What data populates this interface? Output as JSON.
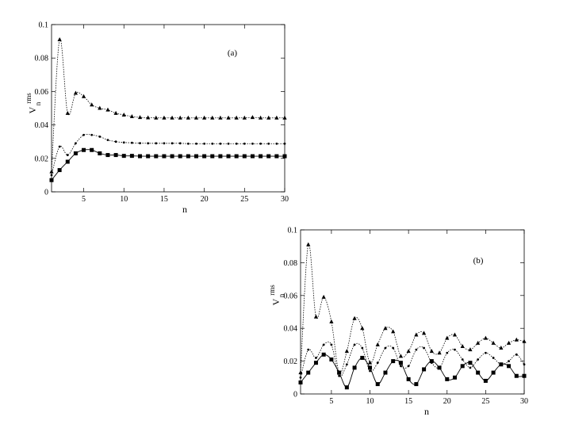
{
  "chart_data": [
    {
      "type": "line",
      "panel_label": "(a)",
      "xlabel": "n",
      "ylabel": "V",
      "ylabel_sub": "n",
      "ylabel_sup": "rms",
      "xlim": [
        1,
        30
      ],
      "ylim": [
        0,
        0.1
      ],
      "xticks": [
        5,
        10,
        15,
        20,
        25,
        30
      ],
      "yticks": [
        0,
        0.02,
        0.04,
        0.06,
        0.08,
        0.1
      ],
      "xtick_labels": [
        "5",
        "10",
        "15",
        "20",
        "25",
        "30"
      ],
      "ytick_labels": [
        "0",
        "0.02",
        "0.04",
        "0.06",
        "0.08",
        "0.1"
      ],
      "grid": false,
      "series": [
        {
          "marker": "triangle",
          "line": "dotted",
          "color": "#000000",
          "x": [
            1,
            2,
            3,
            4,
            5,
            6,
            7,
            8,
            9,
            10,
            11,
            12,
            13,
            14,
            15,
            16,
            17,
            18,
            19,
            20,
            21,
            22,
            23,
            24,
            25,
            26,
            27,
            28,
            29,
            30
          ],
          "y": [
            0.012,
            0.091,
            0.047,
            0.059,
            0.057,
            0.052,
            0.05,
            0.049,
            0.047,
            0.046,
            0.045,
            0.0445,
            0.0443,
            0.0442,
            0.0442,
            0.0442,
            0.0442,
            0.0442,
            0.0442,
            0.0442,
            0.0442,
            0.0442,
            0.0442,
            0.0442,
            0.0442,
            0.0445,
            0.0442,
            0.0442,
            0.0442,
            0.0442
          ]
        },
        {
          "marker": "dot",
          "line": "dotted",
          "color": "#000000",
          "x": [
            1,
            2,
            3,
            4,
            5,
            6,
            7,
            8,
            9,
            10,
            11,
            12,
            13,
            14,
            15,
            16,
            17,
            18,
            19,
            20,
            21,
            22,
            23,
            24,
            25,
            26,
            27,
            28,
            29,
            30
          ],
          "y": [
            0.01,
            0.027,
            0.022,
            0.029,
            0.034,
            0.034,
            0.033,
            0.031,
            0.03,
            0.0295,
            0.0293,
            0.0291,
            0.029,
            0.029,
            0.029,
            0.029,
            0.029,
            0.0288,
            0.0288,
            0.0288,
            0.0288,
            0.0288,
            0.0288,
            0.0288,
            0.0288,
            0.0288,
            0.0288,
            0.0288,
            0.0288,
            0.0288
          ]
        },
        {
          "marker": "square",
          "line": "solid",
          "color": "#000000",
          "x": [
            1,
            2,
            3,
            4,
            5,
            6,
            7,
            8,
            9,
            10,
            11,
            12,
            13,
            14,
            15,
            16,
            17,
            18,
            19,
            20,
            21,
            22,
            23,
            24,
            25,
            26,
            27,
            28,
            29,
            30
          ],
          "y": [
            0.007,
            0.013,
            0.018,
            0.023,
            0.025,
            0.025,
            0.023,
            0.022,
            0.022,
            0.0215,
            0.0215,
            0.0213,
            0.0213,
            0.0213,
            0.0213,
            0.0213,
            0.0213,
            0.0213,
            0.0213,
            0.0213,
            0.0213,
            0.0213,
            0.0213,
            0.0213,
            0.0213,
            0.0213,
            0.0213,
            0.0213,
            0.0213,
            0.0213
          ]
        }
      ]
    },
    {
      "type": "line",
      "panel_label": "(b)",
      "xlabel": "n",
      "ylabel": "V",
      "ylabel_sub": "n",
      "ylabel_sup": "rms",
      "xlim": [
        1,
        30
      ],
      "ylim": [
        0,
        0.1
      ],
      "xticks": [
        5,
        10,
        15,
        20,
        25,
        30
      ],
      "yticks": [
        0,
        0.02,
        0.04,
        0.06,
        0.08,
        0.1
      ],
      "xtick_labels": [
        "5",
        "10",
        "15",
        "20",
        "25",
        "30"
      ],
      "ytick_labels": [
        "0",
        "0.02",
        "0.04",
        "0.06",
        "0.08",
        "0.1"
      ],
      "grid": false,
      "series": [
        {
          "marker": "triangle",
          "line": "dotted",
          "color": "#000000",
          "x": [
            1,
            2,
            3,
            4,
            5,
            6,
            7,
            8,
            9,
            10,
            11,
            12,
            13,
            14,
            15,
            16,
            17,
            18,
            19,
            20,
            21,
            22,
            23,
            24,
            25,
            26,
            27,
            28,
            29,
            30
          ],
          "y": [
            0.013,
            0.091,
            0.047,
            0.059,
            0.044,
            0.013,
            0.026,
            0.046,
            0.04,
            0.019,
            0.03,
            0.04,
            0.038,
            0.023,
            0.026,
            0.036,
            0.037,
            0.026,
            0.025,
            0.034,
            0.036,
            0.029,
            0.027,
            0.031,
            0.034,
            0.031,
            0.028,
            0.031,
            0.033,
            0.032
          ]
        },
        {
          "marker": "dot",
          "line": "dotted",
          "color": "#000000",
          "x": [
            1,
            2,
            3,
            4,
            5,
            6,
            7,
            8,
            9,
            10,
            11,
            12,
            13,
            14,
            15,
            16,
            17,
            18,
            19,
            20,
            21,
            22,
            23,
            24,
            25,
            26,
            27,
            28,
            29,
            30
          ],
          "y": [
            0.01,
            0.027,
            0.022,
            0.03,
            0.03,
            0.011,
            0.018,
            0.03,
            0.028,
            0.014,
            0.019,
            0.028,
            0.028,
            0.017,
            0.017,
            0.027,
            0.028,
            0.019,
            0.016,
            0.025,
            0.027,
            0.021,
            0.016,
            0.021,
            0.025,
            0.022,
            0.018,
            0.02,
            0.024,
            0.018
          ]
        },
        {
          "marker": "square",
          "line": "solid",
          "color": "#000000",
          "x": [
            1,
            2,
            3,
            4,
            5,
            6,
            7,
            8,
            9,
            10,
            11,
            12,
            13,
            14,
            15,
            16,
            17,
            18,
            19,
            20,
            21,
            22,
            23,
            24,
            25,
            26,
            27,
            28,
            29,
            30
          ],
          "y": [
            0.007,
            0.013,
            0.019,
            0.024,
            0.021,
            0.013,
            0.004,
            0.016,
            0.022,
            0.016,
            0.006,
            0.013,
            0.02,
            0.019,
            0.009,
            0.006,
            0.015,
            0.02,
            0.016,
            0.009,
            0.01,
            0.017,
            0.019,
            0.013,
            0.008,
            0.013,
            0.018,
            0.017,
            0.011,
            0.011
          ]
        }
      ]
    }
  ]
}
